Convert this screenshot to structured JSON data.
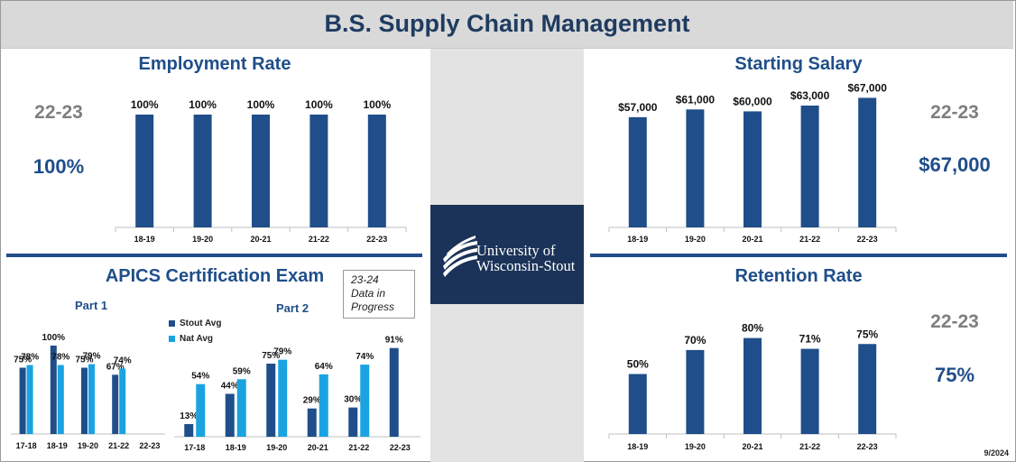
{
  "header": {
    "title": "B.S. Supply Chain Management"
  },
  "employment": {
    "title": "Employment Rate",
    "highlight_year": "22-23",
    "highlight_value": "100%"
  },
  "salary": {
    "title": "Starting Salary",
    "highlight_year": "22-23",
    "highlight_value": "$67,000"
  },
  "apics": {
    "title": "APICS Certification Exam",
    "part1_title": "Part 1",
    "part2_title": "Part 2",
    "note_lines": [
      "23-24",
      "Data in",
      "Progress"
    ],
    "legend": [
      {
        "label": "Stout Avg",
        "color": "#1f4e8a"
      },
      {
        "label": "Nat Avg",
        "color": "#1aa3e0"
      }
    ]
  },
  "retention": {
    "title": "Retention Rate",
    "highlight_year": "22-23",
    "highlight_value": "75%"
  },
  "logo": {
    "line1": "University of",
    "line2": "Wisconsin-Stout"
  },
  "footer": {
    "date": "9/2024"
  },
  "colors": {
    "dark": "#1f4e8a",
    "light": "#1aa3e0",
    "navy": "#1b3358",
    "gray": "#7f7f7f"
  },
  "chart_data": [
    {
      "id": "employment",
      "type": "bar",
      "title": "Employment Rate",
      "categories": [
        "18-19",
        "19-20",
        "20-21",
        "21-22",
        "22-23"
      ],
      "values": [
        100,
        100,
        100,
        100,
        100
      ],
      "labels": [
        "100%",
        "100%",
        "100%",
        "100%",
        "100%"
      ],
      "ylim": [
        0,
        100
      ]
    },
    {
      "id": "salary",
      "type": "bar",
      "title": "Starting Salary",
      "categories": [
        "18-19",
        "19-20",
        "20-21",
        "21-22",
        "22-23"
      ],
      "values": [
        57000,
        61000,
        60000,
        63000,
        67000
      ],
      "labels": [
        "$57,000",
        "$61,000",
        "$60,000",
        "$63,000",
        "$67,000"
      ],
      "ylim": [
        0,
        70000
      ]
    },
    {
      "id": "apics-part1",
      "type": "bar",
      "title": "Part 1",
      "categories": [
        "17-18",
        "18-19",
        "19-20",
        "21-22",
        "22-23"
      ],
      "series": [
        {
          "name": "Stout Avg",
          "values": [
            75,
            100,
            75,
            67,
            null
          ],
          "labels": [
            "75%",
            "100%",
            "75%",
            "67%",
            ""
          ]
        },
        {
          "name": "Nat Avg",
          "values": [
            78,
            78,
            79,
            74,
            null
          ],
          "labels": [
            "78%",
            "78%",
            "79%",
            "74%",
            ""
          ]
        }
      ],
      "ylim": [
        0,
        100
      ]
    },
    {
      "id": "apics-part2",
      "type": "bar",
      "title": "Part 2",
      "categories": [
        "17-18",
        "18-19",
        "19-20",
        "20-21",
        "21-22",
        "22-23"
      ],
      "series": [
        {
          "name": "Stout Avg",
          "values": [
            13,
            44,
            75,
            29,
            30,
            91
          ],
          "labels": [
            "13%",
            "44%",
            "75%",
            "29%",
            "30%",
            "91%"
          ]
        },
        {
          "name": "Nat Avg",
          "values": [
            54,
            59,
            79,
            64,
            74,
            null
          ],
          "labels": [
            "54%",
            "59%",
            "79%",
            "64%",
            "74%",
            ""
          ]
        }
      ],
      "ylim": [
        0,
        100
      ]
    },
    {
      "id": "retention",
      "type": "bar",
      "title": "Retention Rate",
      "categories": [
        "18-19",
        "19-20",
        "20-21",
        "21-22",
        "22-23"
      ],
      "values": [
        50,
        70,
        80,
        71,
        75
      ],
      "labels": [
        "50%",
        "70%",
        "80%",
        "71%",
        "75%"
      ],
      "ylim": [
        0,
        100
      ]
    }
  ]
}
